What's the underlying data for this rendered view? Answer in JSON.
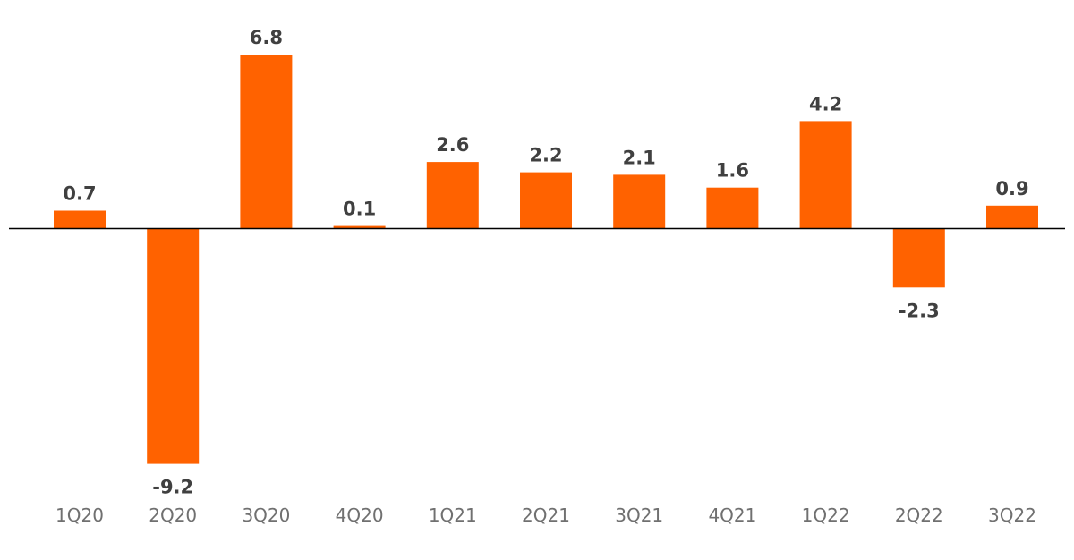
{
  "colors": {
    "bar": "#ff6200",
    "axis": "#000000",
    "value_label": "#404040",
    "tick_label": "#707070"
  },
  "chart_data": {
    "type": "bar",
    "categories": [
      "1Q20",
      "2Q20",
      "3Q20",
      "4Q20",
      "1Q21",
      "2Q21",
      "3Q21",
      "4Q21",
      "1Q22",
      "2Q22",
      "3Q22"
    ],
    "values": [
      0.7,
      -9.2,
      6.8,
      0.1,
      2.6,
      2.2,
      2.1,
      1.6,
      4.2,
      -2.3,
      0.9
    ],
    "value_labels": [
      "0.7",
      "-9.2",
      "6.8",
      "0.1",
      "2.6",
      "2.2",
      "2.1",
      "1.6",
      "4.2",
      "-2.3",
      "0.9"
    ],
    "title": "",
    "xlabel": "",
    "ylabel": "",
    "ylim": [
      -9.2,
      6.8
    ],
    "grid": false,
    "legend": "none",
    "data_labels": true
  }
}
